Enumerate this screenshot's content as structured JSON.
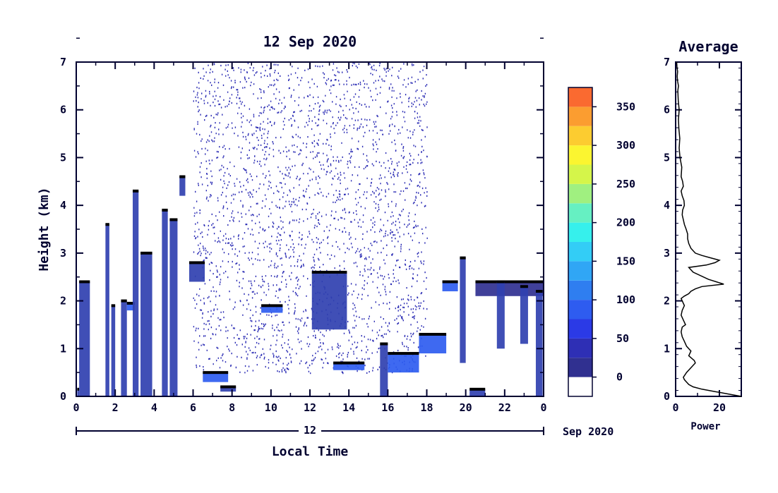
{
  "chart_data": [
    {
      "type": "heatmap",
      "title": "12 Sep 2020",
      "xlabel": "Local Time",
      "ylabel": "Height (km)",
      "xlim": [
        0,
        24
      ],
      "ylim": [
        0,
        7
      ],
      "x_ticks": [
        "0",
        "2",
        "4",
        "6",
        "8",
        "10",
        "12",
        "14",
        "16",
        "18",
        "20",
        "22",
        "0"
      ],
      "y_ticks": [
        "0",
        "1",
        "2",
        "3",
        "4",
        "5",
        "6",
        "7"
      ],
      "date_axis_label": "12",
      "date_axis_suffix": "Sep 2020",
      "layers": [
        {
          "t0": 0.05,
          "t1": 0.15,
          "h0": 0.0,
          "h1": 0.15,
          "level": 1
        },
        {
          "t0": 0.15,
          "t1": 0.7,
          "h0": 0.0,
          "h1": 2.4,
          "level": 1
        },
        {
          "t0": 1.5,
          "t1": 1.7,
          "h0": 0.0,
          "h1": 3.6,
          "level": 1
        },
        {
          "t0": 1.8,
          "t1": 2.0,
          "h0": 0.0,
          "h1": 1.9,
          "level": 1
        },
        {
          "t0": 2.3,
          "t1": 2.6,
          "h0": 0.0,
          "h1": 2.0,
          "level": 1
        },
        {
          "t0": 2.6,
          "t1": 3.0,
          "h0": 1.8,
          "h1": 1.95,
          "level": 2
        },
        {
          "t0": 2.9,
          "t1": 3.2,
          "h0": 0.0,
          "h1": 4.3,
          "level": 1
        },
        {
          "t0": 3.3,
          "t1": 3.9,
          "h0": 0.0,
          "h1": 3.0,
          "level": 1
        },
        {
          "t0": 4.4,
          "t1": 4.7,
          "h0": 0.0,
          "h1": 3.9,
          "level": 1
        },
        {
          "t0": 4.8,
          "t1": 5.2,
          "h0": 0.0,
          "h1": 3.7,
          "level": 1
        },
        {
          "t0": 5.3,
          "t1": 5.6,
          "h0": 4.2,
          "h1": 4.6,
          "level": 1
        },
        {
          "t0": 5.8,
          "t1": 6.6,
          "h0": 2.4,
          "h1": 2.8,
          "level": 1
        },
        {
          "t0": 6.5,
          "t1": 7.8,
          "h0": 0.3,
          "h1": 0.5,
          "level": 2
        },
        {
          "t0": 7.4,
          "t1": 8.2,
          "h0": 0.1,
          "h1": 0.2,
          "level": 1
        },
        {
          "t0": 9.5,
          "t1": 10.6,
          "h0": 1.75,
          "h1": 1.9,
          "level": 2
        },
        {
          "t0": 12.1,
          "t1": 13.9,
          "h0": 1.4,
          "h1": 2.6,
          "level": 1
        },
        {
          "t0": 13.2,
          "t1": 14.8,
          "h0": 0.55,
          "h1": 0.7,
          "level": 2
        },
        {
          "t0": 15.6,
          "t1": 16.0,
          "h0": 0.0,
          "h1": 1.1,
          "level": 1
        },
        {
          "t0": 16.0,
          "t1": 17.6,
          "h0": 0.5,
          "h1": 0.9,
          "level": 2
        },
        {
          "t0": 17.6,
          "t1": 19.0,
          "h0": 0.9,
          "h1": 1.3,
          "level": 2
        },
        {
          "t0": 18.8,
          "t1": 19.6,
          "h0": 2.2,
          "h1": 2.4,
          "level": 2
        },
        {
          "t0": 19.7,
          "t1": 20.0,
          "h0": 0.7,
          "h1": 2.9,
          "level": 1
        },
        {
          "t0": 20.2,
          "t1": 21.0,
          "h0": 0.0,
          "h1": 0.15,
          "level": 1
        },
        {
          "t0": 20.5,
          "t1": 24.0,
          "h0": 2.1,
          "h1": 2.4,
          "level": 3
        },
        {
          "t0": 21.6,
          "t1": 22.0,
          "h0": 1.0,
          "h1": 2.4,
          "level": 1
        },
        {
          "t0": 22.8,
          "t1": 23.2,
          "h0": 1.1,
          "h1": 2.3,
          "level": 1
        },
        {
          "t0": 23.6,
          "t1": 23.95,
          "h0": 0.0,
          "h1": 2.2,
          "level": 1
        }
      ],
      "noise_region": {
        "t0": 6.0,
        "t1": 18.0,
        "h0": 0.5,
        "h1": 7.0
      }
    },
    {
      "type": "bar",
      "title": "",
      "colorbar": true,
      "ticks": [
        "0",
        "50",
        "100",
        "150",
        "200",
        "250",
        "300",
        "350"
      ],
      "range": [
        -25,
        375
      ],
      "bands": [
        {
          "from": -25,
          "to": 0,
          "color": "#ffffff"
        },
        {
          "from": 0,
          "to": 25,
          "color": "#303090"
        },
        {
          "from": 25,
          "to": 50,
          "color": "#2e2fb5"
        },
        {
          "from": 50,
          "to": 75,
          "color": "#2b3ae6"
        },
        {
          "from": 75,
          "to": 100,
          "color": "#2e5cf0"
        },
        {
          "from": 100,
          "to": 125,
          "color": "#2f7ef0"
        },
        {
          "from": 125,
          "to": 150,
          "color": "#30a6f5"
        },
        {
          "from": 150,
          "to": 175,
          "color": "#33cdf6"
        },
        {
          "from": 175,
          "to": 200,
          "color": "#36f0ec"
        },
        {
          "from": 200,
          "to": 225,
          "color": "#66f0c2"
        },
        {
          "from": 225,
          "to": 250,
          "color": "#a0f080"
        },
        {
          "from": 250,
          "to": 275,
          "color": "#d5f54a"
        },
        {
          "from": 275,
          "to": 300,
          "color": "#fbf530"
        },
        {
          "from": 300,
          "to": 325,
          "color": "#fccc30"
        },
        {
          "from": 325,
          "to": 350,
          "color": "#fb9d30"
        },
        {
          "from": 350,
          "to": 375,
          "color": "#fa6a30"
        },
        {
          "from": 375,
          "to": 400,
          "color": "#f53a30"
        }
      ]
    },
    {
      "type": "line",
      "title": "Average",
      "xlabel": "Power",
      "ylabel": "",
      "xlim": [
        0,
        30
      ],
      "ylim": [
        0,
        7
      ],
      "x_ticks": [
        "0",
        "20"
      ],
      "y_ticks": [
        "0",
        "1",
        "2",
        "3",
        "4",
        "5",
        "6",
        "7"
      ],
      "series": [
        {
          "x": [
            30,
            24,
            18,
            12,
            8,
            6,
            5,
            4,
            3.5,
            5,
            7,
            9,
            8.5,
            6,
            7,
            5,
            4,
            3,
            2.5,
            3,
            4.5,
            3.5,
            2.5,
            3,
            4,
            3,
            2.5,
            4,
            6,
            7,
            9,
            12,
            22,
            15,
            8,
            6,
            14,
            18,
            20,
            16,
            12,
            9,
            7,
            6,
            5.5,
            5.5,
            4.8,
            4,
            3.5,
            3,
            3.2,
            4,
            3.8,
            3,
            2.5,
            3.5,
            3.2,
            2.5,
            2.8,
            2,
            1.6,
            1.9,
            1.5,
            1.3,
            1.6,
            1.2,
            1,
            1.3,
            0.9,
            0.7,
            0.9,
            0.6,
            0.5
          ],
          "y": [
            0.0,
            0.05,
            0.1,
            0.15,
            0.2,
            0.25,
            0.3,
            0.35,
            0.4,
            0.5,
            0.6,
            0.7,
            0.75,
            0.85,
            0.95,
            1.05,
            1.15,
            1.25,
            1.35,
            1.45,
            1.5,
            1.6,
            1.7,
            1.8,
            1.9,
            2.0,
            2.05,
            2.1,
            2.15,
            2.2,
            2.25,
            2.3,
            2.35,
            2.45,
            2.6,
            2.7,
            2.75,
            2.8,
            2.85,
            2.9,
            2.95,
            3.0,
            3.1,
            3.2,
            3.3,
            3.4,
            3.5,
            3.6,
            3.7,
            3.8,
            3.9,
            4.0,
            4.1,
            4.2,
            4.3,
            4.4,
            4.5,
            4.6,
            4.8,
            5.0,
            5.2,
            5.4,
            5.6,
            5.8,
            6.0,
            6.2,
            6.4,
            6.5,
            6.6,
            6.7,
            6.8,
            6.9,
            7.0
          ]
        }
      ]
    }
  ]
}
